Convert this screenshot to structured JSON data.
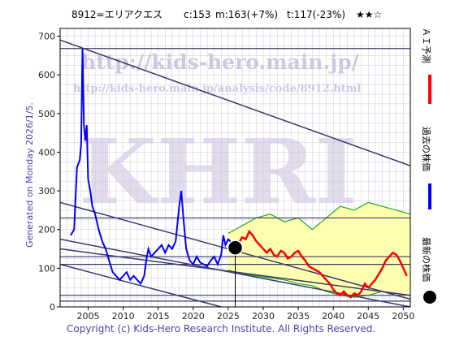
{
  "header": {
    "code_name": "8912=エリアクエス",
    "current": "c:153",
    "mid": "m:163(+7%)",
    "target": "t:117(-23%)",
    "rating": "★★☆"
  },
  "watermark": {
    "big": "KHRI",
    "url": "http://kids-hero.main.jp/",
    "url2": "http://kids-hero.main.jp/analysis/code/8912.html"
  },
  "generated": "Generated on Monday 2026/1/5.",
  "copyright": "Copyright (c) Kids-Hero Research Institute. All Rights Reserved.",
  "legend": {
    "ai": "ＡＩ予測",
    "past": "過去の株価",
    "latest": "最新の株価"
  },
  "colors": {
    "ai": "#ff0000",
    "past": "#0000ff",
    "latest": "#000000",
    "band_fill": "#ffffb0",
    "band_line": "#22aa22",
    "trend": "#3a3a6a",
    "grid": "#c8c8dc"
  },
  "chart_data": {
    "type": "line",
    "xlim": [
      2001,
      2051
    ],
    "ylim": [
      0,
      720
    ],
    "x_ticks": [
      "2005",
      "2010",
      "2015",
      "2020",
      "2025",
      "2030",
      "2035",
      "2040",
      "2045",
      "2050"
    ],
    "y_ticks": [
      "0",
      "100",
      "200",
      "300",
      "400",
      "500",
      "600",
      "700"
    ],
    "grid": true,
    "series": [
      {
        "name": "過去の株価",
        "x": [
          2002.5,
          2003.0,
          2003.4,
          2003.8,
          2004.0,
          2004.2,
          2004.4,
          2004.6,
          2004.8,
          2005.0,
          2005.3,
          2005.6,
          2006.0,
          2006.5,
          2007.0,
          2007.5,
          2008.0,
          2008.5,
          2009.0,
          2009.5,
          2010.0,
          2010.5,
          2011.0,
          2011.5,
          2012.0,
          2012.5,
          2013.0,
          2013.3,
          2013.6,
          2014.0,
          2014.5,
          2015.0,
          2015.5,
          2016.0,
          2016.5,
          2017.0,
          2017.5,
          2018.0,
          2018.3,
          2018.6,
          2019.0,
          2019.5,
          2020.0,
          2020.5,
          2021.0,
          2021.5,
          2022.0,
          2022.5,
          2023.0,
          2023.5,
          2024.0,
          2024.3,
          2024.6,
          2025.0,
          2025.5
        ],
        "y": [
          185,
          200,
          360,
          380,
          420,
          668,
          470,
          430,
          470,
          330,
          300,
          260,
          240,
          200,
          170,
          150,
          120,
          90,
          80,
          70,
          80,
          90,
          70,
          80,
          70,
          60,
          80,
          120,
          150,
          130,
          140,
          150,
          160,
          140,
          160,
          150,
          170,
          260,
          300,
          230,
          150,
          120,
          110,
          130,
          115,
          110,
          105,
          120,
          130,
          110,
          135,
          185,
          160,
          175,
          165
        ]
      },
      {
        "name": "ＡＩ予測",
        "x": [
          2025.5,
          2026.0,
          2026.5,
          2027.0,
          2027.5,
          2028.0,
          2028.5,
          2029.0,
          2029.5,
          2030.0,
          2030.5,
          2031.0,
          2031.5,
          2032.0,
          2032.5,
          2033.0,
          2033.5,
          2034.0,
          2034.5,
          2035.0,
          2035.5,
          2036.0,
          2036.5,
          2037.0,
          2037.5,
          2038.0,
          2038.5,
          2039.0,
          2039.5,
          2040.0,
          2040.5,
          2041.0,
          2041.5,
          2042.0,
          2042.5,
          2043.0,
          2043.5,
          2044.0,
          2044.5,
          2045.0,
          2045.5,
          2046.0,
          2046.5,
          2047.0,
          2047.5,
          2048.0,
          2048.5,
          2049.0,
          2049.5,
          2050.0,
          2050.5
        ],
        "y": [
          155,
          150,
          165,
          180,
          175,
          195,
          185,
          170,
          160,
          150,
          140,
          150,
          135,
          130,
          145,
          140,
          125,
          130,
          140,
          145,
          130,
          120,
          105,
          100,
          95,
          90,
          80,
          70,
          60,
          45,
          35,
          30,
          40,
          30,
          25,
          35,
          30,
          40,
          60,
          50,
          60,
          70,
          85,
          100,
          120,
          130,
          140,
          135,
          120,
          100,
          80
        ]
      },
      {
        "name": "予測帯上限",
        "x": [
          2025,
          2027,
          2029,
          2031,
          2033,
          2035,
          2037,
          2039,
          2041,
          2043,
          2045,
          2047,
          2049,
          2051
        ],
        "y": [
          190,
          210,
          230,
          240,
          220,
          230,
          200,
          230,
          260,
          250,
          270,
          260,
          250,
          240
        ]
      },
      {
        "name": "予測帯下限",
        "x": [
          2025,
          2027,
          2029,
          2031,
          2033,
          2035,
          2037,
          2039,
          2041,
          2043,
          2045,
          2047,
          2049,
          2051
        ],
        "y": [
          95,
          85,
          80,
          75,
          70,
          60,
          55,
          40,
          30,
          25,
          30,
          40,
          35,
          30
        ]
      }
    ],
    "reference_levels": [
      668,
      230,
      130,
      110,
      30,
      15
    ],
    "trend_lines": [
      {
        "x": [
          2001,
          2051
        ],
        "y": [
          690,
          365
        ]
      },
      {
        "x": [
          2001,
          2051
        ],
        "y": [
          270,
          20
        ]
      },
      {
        "x": [
          2001,
          2051
        ],
        "y": [
          175,
          0
        ]
      },
      {
        "x": [
          2001,
          2051
        ],
        "y": [
          150,
          30
        ]
      },
      {
        "x": [
          2001,
          2024
        ],
        "y": [
          110,
          0
        ]
      }
    ],
    "latest_point": {
      "x": 2026.0,
      "y": 153
    }
  }
}
